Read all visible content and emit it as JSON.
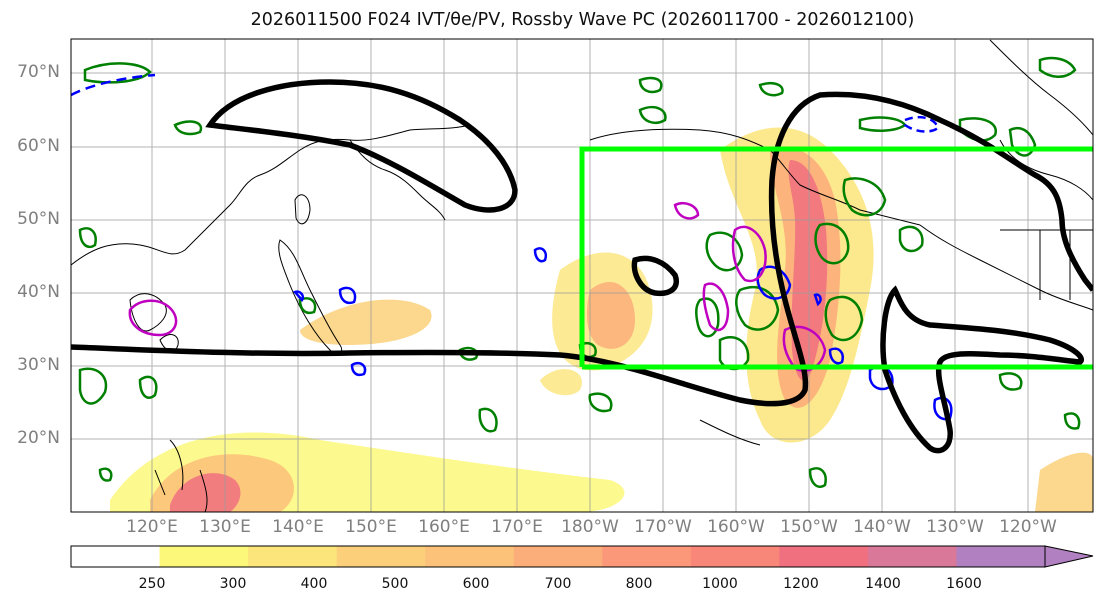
{
  "title": "2026011500 F024 IVT/θe/PV, Rossby Wave PC (2026011700 - 2026012100)",
  "lat_labels": [
    "70°N",
    "60°N",
    "50°N",
    "40°N",
    "30°N",
    "20°N"
  ],
  "lon_labels": [
    "120°E",
    "130°E",
    "140°E",
    "150°E",
    "160°E",
    "170°E",
    "180°W",
    "170°W",
    "160°W",
    "150°W",
    "140°W",
    "130°W",
    "120°W"
  ],
  "colorbar": {
    "ticks": [
      "250",
      "300",
      "400",
      "500",
      "600",
      "700",
      "800",
      "1000",
      "1200",
      "1400",
      "1600"
    ],
    "colors": [
      "#ffffff",
      "#fcf87a",
      "#fce57a",
      "#fcd07a",
      "#fcc27a",
      "#fcae7a",
      "#fc987a",
      "#f8877a",
      "#f07080",
      "#d97898",
      "#b080c0"
    ]
  },
  "colors": {
    "highlight_box": "#00ff00",
    "theta_e_contour": "#000000",
    "pv_positive": "#008000",
    "pv_negative": "#0000ff",
    "anomaly_contour": "#c000c0",
    "coastline": "#000000"
  }
}
